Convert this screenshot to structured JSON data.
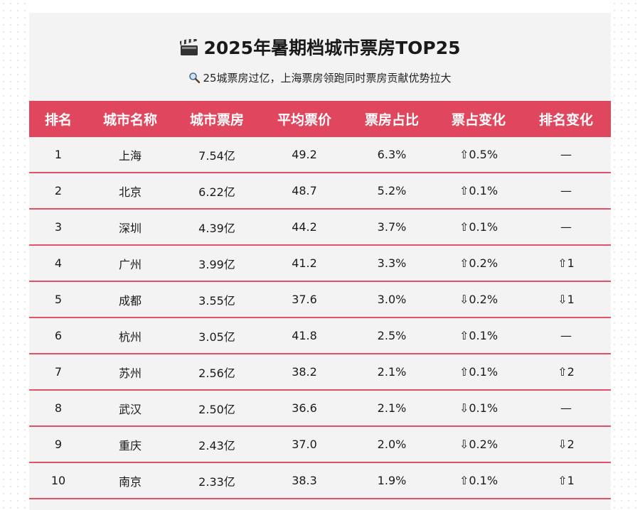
{
  "title": "2025年暑期档城市票房TOP25",
  "title_icon": "clapperboard-icon",
  "subtitle": "25城票房过亿，上海票房领跑同时票房贡献优势拉大",
  "subtitle_icon": "magnifier-icon",
  "colors": {
    "header_bg": "#e0475e",
    "row_border": "#df5369",
    "card_bg": "#f3f3f3"
  },
  "table": {
    "headers": [
      "排名",
      "城市名称",
      "城市票房",
      "平均票价",
      "票房占比",
      "票占变化",
      "排名变化"
    ],
    "rows": [
      [
        "1",
        "上海",
        "7.54亿",
        "49.2",
        "6.3%",
        "⇧0.5%",
        "—"
      ],
      [
        "2",
        "北京",
        "6.22亿",
        "48.7",
        "5.2%",
        "⇧0.1%",
        "—"
      ],
      [
        "3",
        "深圳",
        "4.39亿",
        "44.2",
        "3.7%",
        "⇧0.1%",
        "—"
      ],
      [
        "4",
        "广州",
        "3.99亿",
        "41.2",
        "3.3%",
        "⇧0.2%",
        "⇧1"
      ],
      [
        "5",
        "成都",
        "3.55亿",
        "37.6",
        "3.0%",
        "⇩0.2%",
        "⇩1"
      ],
      [
        "6",
        "杭州",
        "3.05亿",
        "41.8",
        "2.5%",
        "⇧0.1%",
        "—"
      ],
      [
        "7",
        "苏州",
        "2.56亿",
        "38.2",
        "2.1%",
        "⇧0.1%",
        "⇧2"
      ],
      [
        "8",
        "武汉",
        "2.50亿",
        "36.6",
        "2.1%",
        "⇩0.1%",
        "—"
      ],
      [
        "9",
        "重庆",
        "2.43亿",
        "37.0",
        "2.0%",
        "⇩0.2%",
        "⇩2"
      ],
      [
        "10",
        "南京",
        "2.33亿",
        "38.3",
        "1.9%",
        "⇧0.1%",
        "⇧1"
      ]
    ]
  }
}
